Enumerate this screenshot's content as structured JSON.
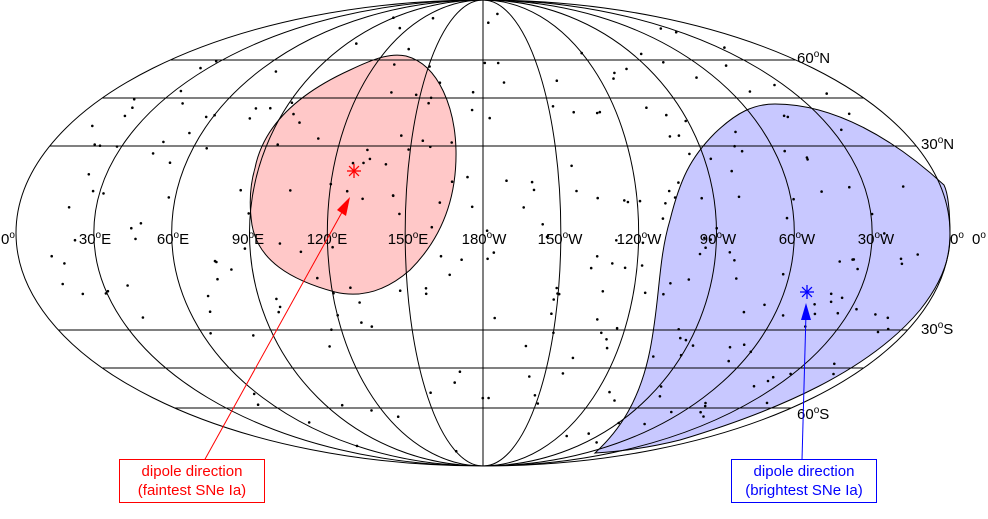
{
  "latitude_labels": [
    {
      "deg": "60",
      "dir": "N"
    },
    {
      "deg": "30",
      "dir": "N"
    },
    {
      "deg": "30",
      "dir": "S"
    },
    {
      "deg": "60",
      "dir": "S"
    }
  ],
  "longitude_labels": [
    {
      "deg": "0",
      "dir": ""
    },
    {
      "deg": "30",
      "dir": "E"
    },
    {
      "deg": "60",
      "dir": "E"
    },
    {
      "deg": "90",
      "dir": "E"
    },
    {
      "deg": "120",
      "dir": "E"
    },
    {
      "deg": "150",
      "dir": "E"
    },
    {
      "deg": "180",
      "dir": "W"
    },
    {
      "deg": "150",
      "dir": "W"
    },
    {
      "deg": "120",
      "dir": "W"
    },
    {
      "deg": "90",
      "dir": "W"
    },
    {
      "deg": "60",
      "dir": "W"
    },
    {
      "deg": "30",
      "dir": "W"
    },
    {
      "deg": "0",
      "dir": ""
    },
    {
      "deg": "0",
      "dir": ""
    }
  ],
  "degree_symbol": "o",
  "callouts": {
    "faintest": {
      "line1": "dipole direction",
      "line2": "(faintest SNe Ia)",
      "color": "#ff0000"
    },
    "brightest": {
      "line1": "dipole direction",
      "line2": "(brightest SNe Ia)",
      "color": "#0000ff"
    }
  },
  "colors": {
    "red_region": "#ffc8c8",
    "blue_region": "#c8c8ff",
    "red_marker": "#ff0000",
    "blue_marker": "#0000ff"
  }
}
